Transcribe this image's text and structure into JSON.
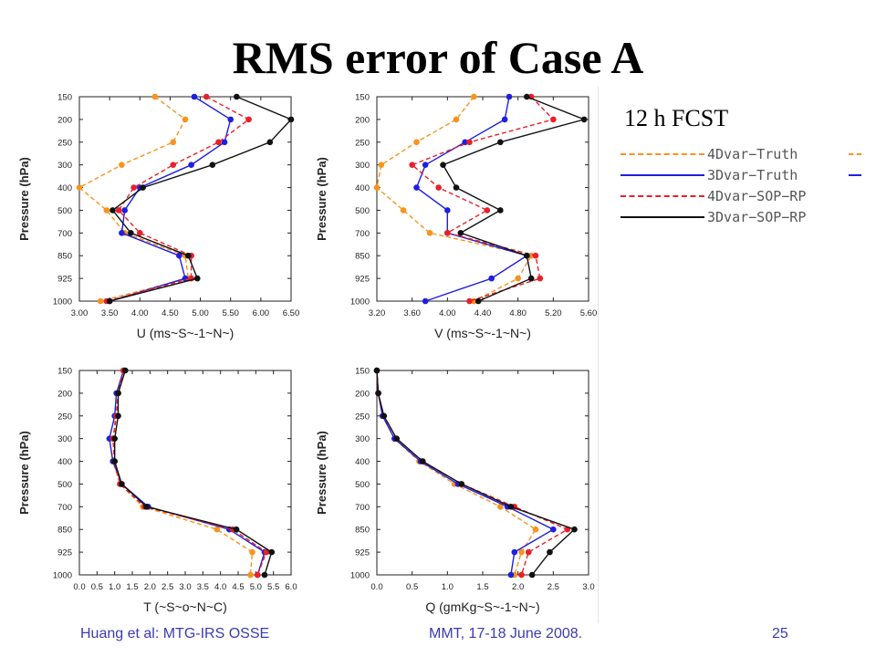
{
  "slide": {
    "title": "RMS error of Case A",
    "fcst_label": "12 h FCST",
    "footer_left": "Huang et al: MTG-IRS OSSE",
    "footer_center": "MMT, 17-18 June 2008.",
    "page_number": "25"
  },
  "legend": [
    {
      "label": "4Dvar−Truth",
      "color": "#f7931e",
      "style": "dashed"
    },
    {
      "label": "3Dvar−Truth",
      "color": "#1f1fe0",
      "style": "solid"
    },
    {
      "label": "4Dvar−SOP−RP",
      "color": "#e8202a",
      "style": "dashed"
    },
    {
      "label": "3Dvar−SOP−RP",
      "color": "#111111",
      "style": "solid"
    }
  ],
  "colors": {
    "orange": "#f7931e",
    "blue": "#1f1fe0",
    "red": "#e8202a",
    "black": "#111111"
  },
  "chart_data": [
    {
      "type": "line",
      "ylabel": "Pressure (hPa)",
      "xlabel": "U (ms~S~-1~N~)",
      "xlim": [
        3.0,
        6.5
      ],
      "xticks": [
        "3.00",
        "3.50",
        "4.00",
        "4.50",
        "5.00",
        "5.50",
        "6.00",
        "6.50"
      ],
      "yticks": [
        "150",
        "200",
        "250",
        "300",
        "400",
        "500",
        "700",
        "850",
        "925",
        "1000"
      ],
      "series": [
        {
          "name": "4Dvar−Truth",
          "color": "#f7931e",
          "dash": true,
          "values": [
            4.25,
            4.75,
            4.55,
            3.7,
            3.0,
            3.45,
            3.75,
            4.75,
            4.8,
            3.35
          ]
        },
        {
          "name": "3Dvar−Truth",
          "color": "#1f1fe0",
          "dash": false,
          "values": [
            4.9,
            5.5,
            5.4,
            4.85,
            4.0,
            3.75,
            3.7,
            4.65,
            4.75,
            3.5
          ]
        },
        {
          "name": "4Dvar−SOP−RP",
          "color": "#e8202a",
          "dash": true,
          "values": [
            5.1,
            5.8,
            5.3,
            4.55,
            3.9,
            3.65,
            4.0,
            4.85,
            4.85,
            3.45
          ]
        },
        {
          "name": "3Dvar−SOP−RP",
          "color": "#111111",
          "dash": false,
          "values": [
            5.6,
            6.5,
            6.15,
            5.2,
            4.05,
            3.55,
            3.85,
            4.8,
            4.95,
            3.5
          ]
        }
      ]
    },
    {
      "type": "line",
      "ylabel": "Pressure (hPa)",
      "xlabel": "V (ms~S~-1~N~)",
      "xlim": [
        3.2,
        5.6
      ],
      "xticks": [
        "3.20",
        "3.60",
        "4.00",
        "4.40",
        "4.80",
        "5.20",
        "5.60"
      ],
      "yticks": [
        "150",
        "200",
        "250",
        "300",
        "400",
        "500",
        "700",
        "850",
        "925",
        "1000"
      ],
      "series": [
        {
          "name": "4Dvar−Truth",
          "color": "#f7931e",
          "dash": true,
          "values": [
            4.3,
            4.1,
            3.65,
            3.25,
            3.2,
            3.5,
            3.8,
            4.95,
            4.8,
            4.3
          ]
        },
        {
          "name": "3Dvar−Truth",
          "color": "#1f1fe0",
          "dash": false,
          "values": [
            4.7,
            4.65,
            4.2,
            3.75,
            3.65,
            4.0,
            4.0,
            4.9,
            4.5,
            3.75
          ]
        },
        {
          "name": "4Dvar−SOP−RP",
          "color": "#e8202a",
          "dash": true,
          "values": [
            4.95,
            5.2,
            4.25,
            3.6,
            3.9,
            4.45,
            4.0,
            5.0,
            5.05,
            4.25
          ]
        },
        {
          "name": "3Dvar−SOP−RP",
          "color": "#111111",
          "dash": false,
          "values": [
            4.9,
            5.55,
            4.6,
            3.95,
            4.1,
            4.6,
            4.15,
            4.9,
            4.95,
            4.35
          ]
        }
      ]
    },
    {
      "type": "line",
      "ylabel": "Pressure (hPa)",
      "xlabel": "T (~S~o~N~C)",
      "xlim": [
        0.0,
        6.0
      ],
      "xticks": [
        "0.0",
        "0.5",
        "1.0",
        "1.5",
        "2.0",
        "2.5",
        "3.0",
        "3.5",
        "4.0",
        "4.5",
        "5.0",
        "5.5",
        "6.0"
      ],
      "yticks": [
        "150",
        "200",
        "250",
        "300",
        "400",
        "500",
        "700",
        "850",
        "925",
        "1000"
      ],
      "series": [
        {
          "name": "4Dvar−Truth",
          "color": "#f7931e",
          "dash": true,
          "values": [
            1.25,
            1.1,
            1.0,
            1.0,
            0.95,
            1.15,
            1.8,
            3.9,
            4.9,
            4.85
          ]
        },
        {
          "name": "3Dvar−Truth",
          "color": "#1f1fe0",
          "dash": false,
          "values": [
            1.25,
            1.05,
            1.0,
            0.85,
            0.95,
            1.2,
            1.95,
            4.25,
            5.25,
            5.05
          ]
        },
        {
          "name": "4Dvar−SOP−RP",
          "color": "#e8202a",
          "dash": true,
          "values": [
            1.25,
            1.1,
            1.05,
            0.95,
            1.0,
            1.15,
            1.85,
            4.35,
            5.3,
            5.05
          ]
        },
        {
          "name": "3Dvar−SOP−RP",
          "color": "#111111",
          "dash": false,
          "values": [
            1.3,
            1.1,
            1.1,
            1.0,
            1.0,
            1.2,
            1.9,
            4.45,
            5.45,
            5.25
          ]
        }
      ]
    },
    {
      "type": "line",
      "ylabel": "Pressure (hPa)",
      "xlabel": "Q (gmKg~S~-1~N~)",
      "xlim": [
        0.0,
        3.0
      ],
      "xticks": [
        "0.0",
        "0.5",
        "1.0",
        "1.5",
        "2.0",
        "2.5",
        "3.0"
      ],
      "yticks": [
        "150",
        "200",
        "250",
        "300",
        "400",
        "500",
        "700",
        "850",
        "925",
        "1000"
      ],
      "series": [
        {
          "name": "4Dvar−Truth",
          "color": "#f7931e",
          "dash": true,
          "values": [
            0.0,
            0.02,
            0.08,
            0.25,
            0.6,
            1.1,
            1.75,
            2.25,
            2.05,
            1.95
          ]
        },
        {
          "name": "3Dvar−Truth",
          "color": "#1f1fe0",
          "dash": false,
          "values": [
            0.0,
            0.02,
            0.08,
            0.25,
            0.62,
            1.15,
            1.85,
            2.5,
            1.95,
            1.9
          ]
        },
        {
          "name": "4Dvar−SOP−RP",
          "color": "#e8202a",
          "dash": true,
          "values": [
            0.0,
            0.02,
            0.1,
            0.28,
            0.65,
            1.2,
            1.95,
            2.7,
            2.15,
            2.05
          ]
        },
        {
          "name": "3Dvar−SOP−RP",
          "color": "#111111",
          "dash": false,
          "values": [
            0.0,
            0.02,
            0.1,
            0.28,
            0.65,
            1.2,
            1.9,
            2.8,
            2.45,
            2.2
          ]
        }
      ]
    }
  ]
}
